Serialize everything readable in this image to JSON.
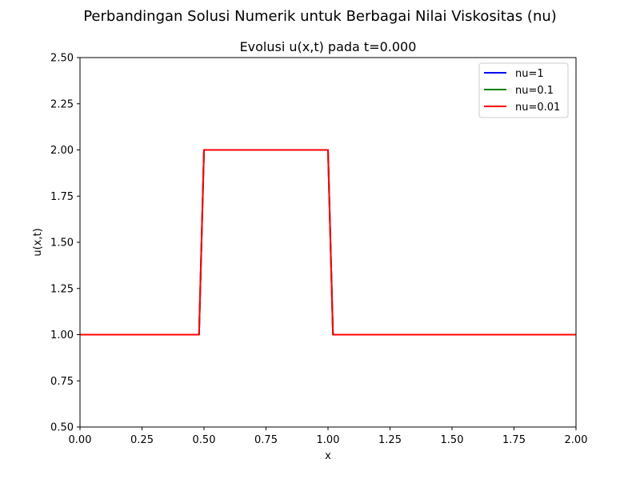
{
  "figure": {
    "suptitle": "Perbandingan Solusi Numerik untuk Berbagai Nilai Viskositas (nu)"
  },
  "chart_data": {
    "type": "line",
    "title": "Evolusi u(x,t) pada t=0.000",
    "xlabel": "x",
    "ylabel": "u(x,t)",
    "xlim": [
      0,
      2
    ],
    "ylim": [
      0.5,
      2.5
    ],
    "xticks": [
      "0.00",
      "0.25",
      "0.50",
      "0.75",
      "1.00",
      "1.25",
      "1.50",
      "1.75",
      "2.00"
    ],
    "yticks": [
      "0.50",
      "0.75",
      "1.00",
      "1.25",
      "1.50",
      "1.75",
      "2.00",
      "2.25",
      "2.50"
    ],
    "grid": false,
    "legend_position": "top-right",
    "series": [
      {
        "name": "nu=1",
        "color": "#0000ff",
        "x": [
          0,
          0.48,
          0.5,
          1.0,
          1.02,
          2.0
        ],
        "y": [
          1,
          1,
          2,
          2,
          1,
          1
        ]
      },
      {
        "name": "nu=0.1",
        "color": "#008000",
        "x": [
          0,
          0.48,
          0.5,
          1.0,
          1.02,
          2.0
        ],
        "y": [
          1,
          1,
          2,
          2,
          1,
          1
        ]
      },
      {
        "name": "nu=0.01",
        "color": "#ff0000",
        "x": [
          0,
          0.48,
          0.5,
          1.0,
          1.02,
          2.0
        ],
        "y": [
          1,
          1,
          2,
          2,
          1,
          1
        ]
      }
    ]
  }
}
